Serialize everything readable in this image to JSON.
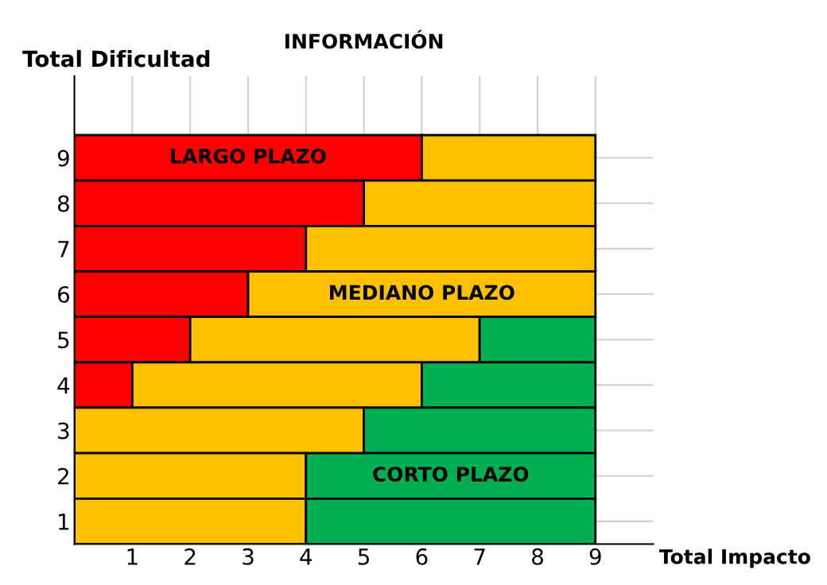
{
  "chart_data": {
    "type": "bar",
    "orientation": "horizontal",
    "stacked": true,
    "title": "INFORMACIÓN",
    "xlabel": "Total Impacto",
    "ylabel": "Total Dificultad",
    "categories": [
      "9",
      "8",
      "7",
      "6",
      "5",
      "4",
      "3",
      "2",
      "1"
    ],
    "series": [
      {
        "name": "LARGO PLAZO",
        "color": "#ff0000",
        "values": [
          6,
          5,
          4,
          3,
          2,
          1,
          0,
          0,
          0
        ]
      },
      {
        "name": "MEDIANO PLAZO",
        "color": "#ffc000",
        "values": [
          3,
          4,
          5,
          6,
          5,
          5,
          5,
          4,
          4
        ]
      },
      {
        "name": "CORTO PLAZO",
        "color": "#00b050",
        "values": [
          0,
          0,
          0,
          0,
          2,
          3,
          4,
          5,
          5
        ]
      }
    ],
    "xlim": [
      0,
      10
    ],
    "xticks": [
      1,
      2,
      3,
      4,
      5,
      6,
      7,
      8,
      9
    ],
    "grid": true,
    "legend": false
  }
}
